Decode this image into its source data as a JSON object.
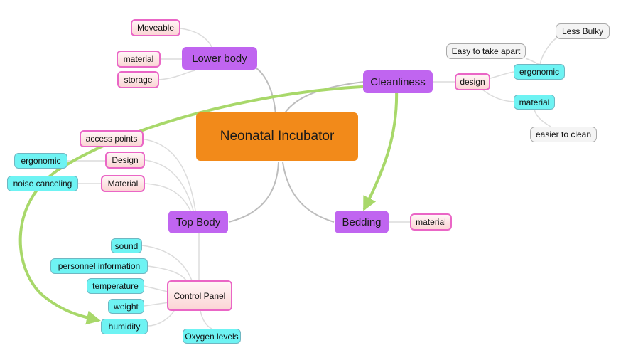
{
  "central": "Neonatal Incubator",
  "main": {
    "lower_body": "Lower body",
    "cleanliness": "Cleanliness",
    "top_body": "Top Body",
    "bedding": "Bedding"
  },
  "lower_body": {
    "moveable": "Moveable",
    "material": "material",
    "storage": "storage"
  },
  "cleanliness": {
    "design": "design",
    "ergonomic": "ergonomic",
    "material": "material",
    "easy_apart": "Easy to take apart",
    "less_bulky": "Less Bulky",
    "easier_clean": "easier to clean"
  },
  "top_body": {
    "access_points": "access points",
    "design": "Design",
    "material": "Material",
    "ergonomic": "ergonomic",
    "noise_canceling": "noise canceling",
    "control_panel": "Control Panel"
  },
  "control_panel": {
    "sound": "sound",
    "personnel": "personnel information",
    "temperature": "temperature",
    "weight": "weight",
    "humidity": "humidity",
    "oxygen": "Oxygen levels"
  },
  "bedding": {
    "material": "material"
  },
  "colors": {
    "central": "#f28a1a",
    "main": "#c065f0",
    "pink_border": "#ea66c6",
    "cyan": "#6ef3f3",
    "gray_border": "#a9a9a9",
    "link": "#bdbdbd",
    "arrow": "#a8d86a"
  }
}
